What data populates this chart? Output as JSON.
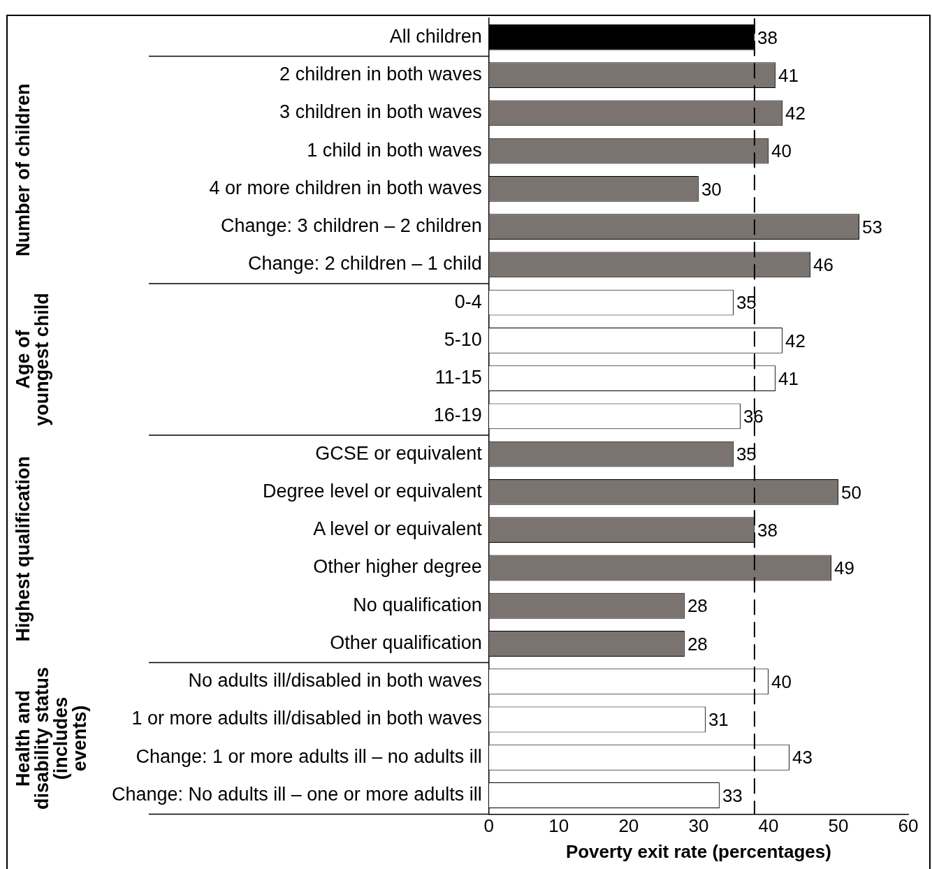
{
  "chart_data": {
    "type": "bar",
    "orientation": "horizontal",
    "xlabel": "Poverty exit rate (percentages)",
    "categories": [
      "All children",
      "2 children in both waves",
      "3 children in both waves",
      "1 child in both waves",
      "4 or more children in both waves",
      "Change: 3 children – 2 children",
      "Change: 2 children – 1 child",
      "0-4",
      "5-10",
      "11-15",
      "16-19",
      "GCSE or equivalent",
      "Degree level or equivalent",
      "A level or equivalent",
      "Other higher degree",
      "No qualification",
      "Other qualification",
      "No adults ill/disabled in both waves",
      "1 or more adults ill/disabled in both waves",
      "Change: 1 or more adults ill – no adults ill",
      "Change: No adults ill – one or more adults ill"
    ],
    "values": [
      38,
      41,
      42,
      40,
      30,
      53,
      46,
      35,
      42,
      41,
      36,
      35,
      50,
      38,
      49,
      28,
      28,
      40,
      31,
      43,
      33
    ],
    "colors": [
      "#000000",
      "#7a7370",
      "#7a7370",
      "#7a7370",
      "#7a7370",
      "#7a7370",
      "#7a7370",
      "#ffffff",
      "#ffffff",
      "#ffffff",
      "#ffffff",
      "#7a7370",
      "#7a7370",
      "#7a7370",
      "#7a7370",
      "#7a7370",
      "#7a7370",
      "#ffffff",
      "#ffffff",
      "#ffffff",
      "#ffffff"
    ],
    "xlim": [
      0,
      60
    ],
    "xticks": [
      0,
      10,
      20,
      30,
      40,
      50,
      60
    ],
    "data_labels": true,
    "grid": false,
    "legend": false,
    "ref_lines": [
      {
        "axis": "x",
        "value": 38,
        "line_style": "dashed",
        "color": "#000000"
      }
    ],
    "annotations": [
      "Number of children",
      "Age of youngest child",
      "Highest qualification",
      "Health and disability status (includes events)"
    ]
  }
}
